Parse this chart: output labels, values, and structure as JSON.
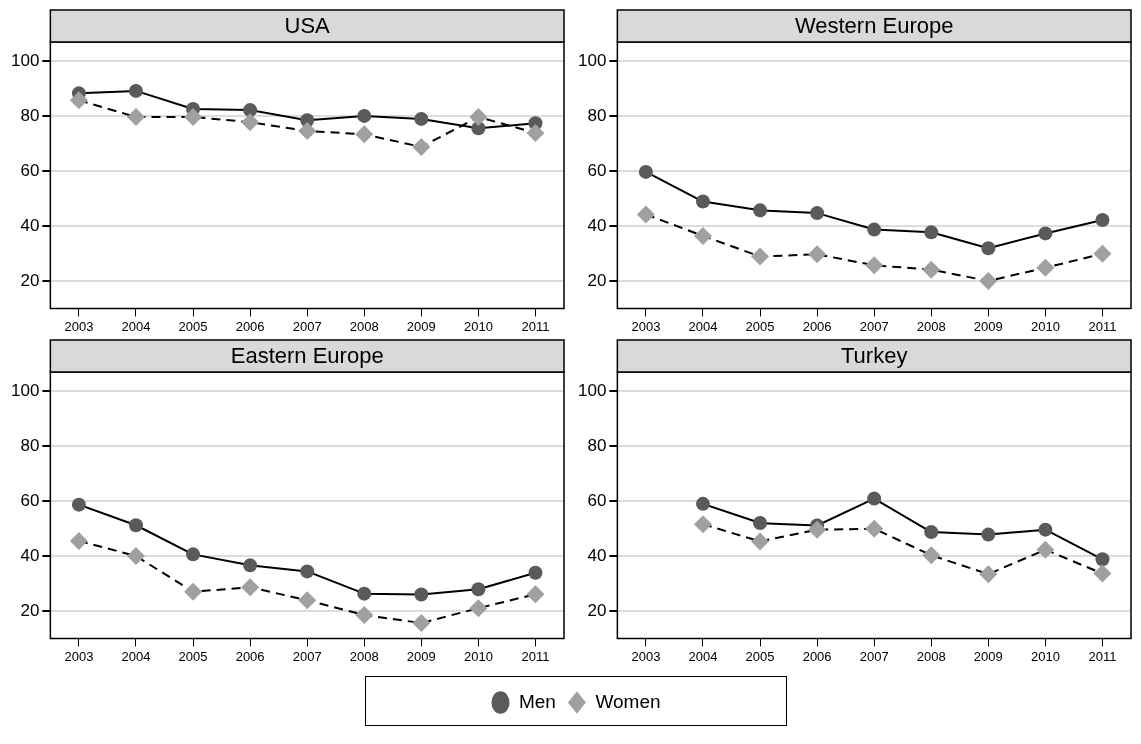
{
  "chart_data": [
    {
      "type": "line",
      "title": "USA",
      "categories": [
        "2003",
        "2004",
        "2005",
        "2006",
        "2007",
        "2008",
        "2009",
        "2010",
        "2011"
      ],
      "ylim": [
        10,
        107
      ],
      "yticks": [
        20,
        40,
        60,
        80,
        100
      ],
      "grid": "y",
      "legend": "bottom",
      "series": [
        {
          "name": "Men",
          "color": "#5a5a5a",
          "marker": "circle",
          "line_style": "solid",
          "values": [
            88.3,
            89.2,
            82.6,
            82.2,
            78.5,
            80.1,
            79.0,
            75.6,
            77.4
          ]
        },
        {
          "name": "Women",
          "color": "#a0a0a0",
          "marker": "diamond",
          "line_style": "dashed",
          "values": [
            85.8,
            79.7,
            79.7,
            77.8,
            74.6,
            73.4,
            68.8,
            79.7,
            73.9
          ]
        }
      ]
    },
    {
      "type": "line",
      "title": "Western Europe",
      "categories": [
        "2003",
        "2004",
        "2005",
        "2006",
        "2007",
        "2008",
        "2009",
        "2010",
        "2011"
      ],
      "ylim": [
        10,
        107
      ],
      "yticks": [
        20,
        40,
        60,
        80,
        100
      ],
      "grid": "y",
      "series": [
        {
          "color": "#5a5a5a",
          "marker": "circle",
          "line_style": "solid",
          "values": [
            59.7,
            48.9,
            45.7,
            44.7,
            38.7,
            37.7,
            31.9,
            37.3,
            42.2
          ]
        },
        {
          "color": "#a0a0a0",
          "marker": "diamond",
          "line_style": "dashed",
          "values": [
            44.2,
            36.4,
            28.9,
            29.7,
            25.7,
            24.1,
            20.0,
            24.8,
            29.9
          ]
        }
      ]
    },
    {
      "type": "line",
      "title": "Eastern Europe",
      "categories": [
        "2003",
        "2004",
        "2005",
        "2006",
        "2007",
        "2008",
        "2009",
        "2010",
        "2011"
      ],
      "ylim": [
        10,
        107
      ],
      "yticks": [
        20,
        40,
        60,
        80,
        100
      ],
      "grid": "y",
      "series": [
        {
          "color": "#5a5a5a",
          "marker": "circle",
          "line_style": "solid",
          "values": [
            58.7,
            51.2,
            40.6,
            36.6,
            34.4,
            26.3,
            26.0,
            27.9,
            33.9
          ]
        },
        {
          "color": "#a0a0a0",
          "marker": "diamond",
          "line_style": "dashed",
          "values": [
            45.5,
            40.0,
            27.0,
            28.6,
            23.9,
            18.5,
            15.6,
            21.0,
            26.1
          ]
        }
      ]
    },
    {
      "type": "line",
      "title": "Turkey",
      "categories": [
        "2003",
        "2004",
        "2005",
        "2006",
        "2007",
        "2008",
        "2009",
        "2010",
        "2011"
      ],
      "ylim": [
        10,
        107
      ],
      "yticks": [
        20,
        40,
        60,
        80,
        100
      ],
      "grid": "y",
      "series": [
        {
          "color": "#5a5a5a",
          "marker": "circle",
          "line_style": "solid",
          "values": [
            null,
            59.0,
            52.0,
            51.1,
            60.9,
            48.7,
            47.8,
            49.6,
            38.8
          ]
        },
        {
          "color": "#a0a0a0",
          "marker": "diamond",
          "line_style": "dashed",
          "values": [
            null,
            51.6,
            45.3,
            49.6,
            49.9,
            40.3,
            33.4,
            42.3,
            33.6
          ]
        }
      ]
    }
  ]
}
